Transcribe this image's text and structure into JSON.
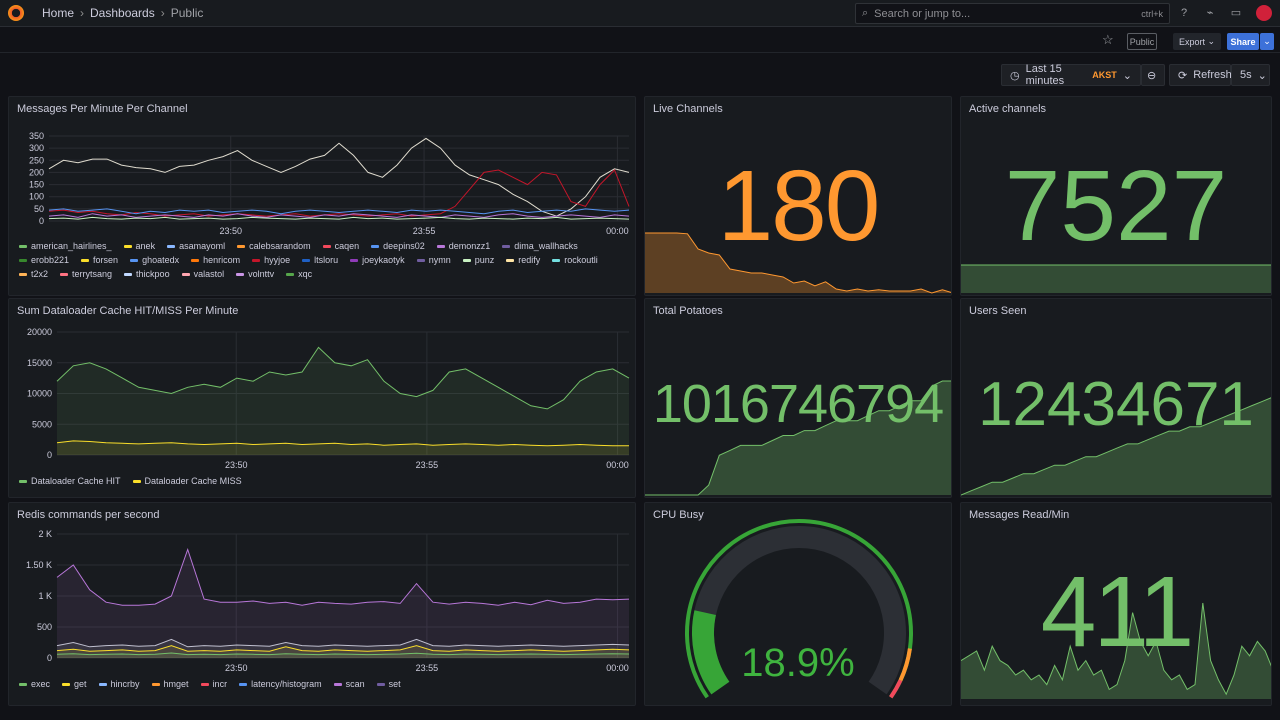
{
  "nav": {
    "breadcrumbs": [
      "Home",
      "Dashboards",
      "Public"
    ],
    "search_placeholder": "Search or jump to...",
    "shortcut": "ctrl+k"
  },
  "toolbar": {
    "public_badge": "Public",
    "export": "Export",
    "share": "Share",
    "time_range": "Last 15 minutes",
    "timezone": "AKST",
    "refresh": "Refresh",
    "refresh_interval": "5s"
  },
  "colors": {
    "green": "#73bf69",
    "orange": "#ff9830",
    "accent": "#3d71d9"
  },
  "panels": {
    "messages": {
      "title": "Messages Per Minute Per Channel"
    },
    "cache": {
      "title": "Sum Dataloader Cache HIT/MISS Per Minute"
    },
    "redis": {
      "title": "Redis commands per second"
    },
    "live": {
      "title": "Live Channels",
      "value": "180",
      "spark": [
        150,
        150,
        150,
        150,
        148,
        110,
        100,
        95,
        60,
        55,
        50,
        50,
        45,
        40,
        25,
        30,
        18,
        28,
        10,
        5,
        10,
        5,
        8,
        5,
        5,
        5,
        10,
        0,
        8,
        0
      ]
    },
    "active": {
      "title": "Active channels",
      "value": "7527",
      "spark": [
        7527,
        7527
      ]
    },
    "potatoes": {
      "title": "Total Potatoes",
      "value": "1016746794",
      "spark": [
        0,
        0,
        0,
        0,
        0,
        0,
        2,
        8,
        9,
        10,
        10,
        10,
        11,
        12,
        12,
        13,
        13,
        14,
        15,
        15,
        15,
        16,
        17,
        17,
        18,
        19,
        19,
        22,
        23,
        23
      ]
    },
    "users": {
      "title": "Users Seen",
      "value": "12434671",
      "spark": [
        0,
        1,
        2,
        3,
        3,
        4,
        5,
        5,
        6,
        7,
        7,
        8,
        9,
        9,
        10,
        11,
        12,
        12,
        13,
        14,
        15,
        15,
        16,
        16,
        17,
        18,
        19,
        20,
        21,
        22,
        23
      ]
    },
    "cpu": {
      "title": "CPU Busy",
      "value": "18.9%",
      "percent": 18.9
    },
    "msgread": {
      "title": "Messages Read/Min",
      "value": "411",
      "spark": [
        40,
        45,
        50,
        30,
        55,
        40,
        35,
        25,
        30,
        20,
        25,
        15,
        35,
        20,
        55,
        30,
        40,
        25,
        30,
        10,
        15,
        40,
        90,
        60,
        45,
        60,
        30,
        20,
        25,
        10,
        15,
        100,
        40,
        20,
        5,
        25,
        55,
        45,
        60,
        50,
        30
      ]
    }
  },
  "chart_data": [
    {
      "id": "messages",
      "type": "line",
      "xlabel": "",
      "ylabel": "",
      "xlim": [
        0.3,
        15.3
      ],
      "ylim": [
        0,
        350
      ],
      "yticks": [
        0,
        50,
        100,
        150,
        200,
        250,
        300,
        350
      ],
      "xticks": [
        {
          "v": 5,
          "label": "23:50"
        },
        {
          "v": 10,
          "label": "23:55"
        },
        {
          "v": 15,
          "label": "00:00"
        }
      ],
      "legend": [
        "american_hairlines_",
        "anek",
        "asamayoml",
        "calebsarandom",
        "caqen",
        "deepins02",
        "demonzz1",
        "dima_wallhacks",
        "erobb221",
        "forsen",
        "ghoatedx",
        "henricom",
        "hyyjoe",
        "ltsloru",
        "joeykaotyk",
        "nymn",
        "punz",
        "redify",
        "rockoutli",
        "t2x2",
        "terrytsang",
        "thickpoo",
        "valastol",
        "volnttv",
        "xqc"
      ],
      "legend_colors": [
        "#73bf69",
        "#fade2a",
        "#8ab8ff",
        "#ff9830",
        "#f2495c",
        "#5794f2",
        "#b877d9",
        "#705da0",
        "#37872d",
        "#fade2a",
        "#5794f2",
        "#ff780a",
        "#c4162a",
        "#1f60c4",
        "#8f3bb8",
        "#705da0",
        "#c8f2c2",
        "#ffe5a5",
        "#73dfe0",
        "#ffb357",
        "#ff7383",
        "#c0d8ff",
        "#ffa6b0",
        "#ca95e5",
        "#56a64b"
      ],
      "series": [
        {
          "name": "forsen",
          "color": "#e0dccf",
          "values": [
            215,
            250,
            240,
            255,
            255,
            230,
            220,
            215,
            200,
            225,
            230,
            250,
            265,
            290,
            250,
            225,
            200,
            225,
            255,
            270,
            320,
            270,
            200,
            180,
            230,
            300,
            340,
            300,
            230,
            190,
            170,
            150,
            110,
            80,
            40,
            20,
            50,
            100,
            180,
            215,
            200
          ]
        },
        {
          "name": "caqen",
          "color": "#c4162a",
          "values": [
            40,
            45,
            35,
            40,
            30,
            25,
            35,
            30,
            20,
            25,
            30,
            20,
            25,
            30,
            25,
            20,
            25,
            30,
            20,
            25,
            30,
            25,
            20,
            25,
            30,
            20,
            25,
            30,
            60,
            130,
            200,
            210,
            180,
            150,
            200,
            190,
            80,
            60,
            150,
            210,
            60
          ]
        },
        {
          "name": "deepins02",
          "color": "#5794f2",
          "values": [
            45,
            50,
            40,
            45,
            50,
            40,
            30,
            40,
            35,
            45,
            40,
            45,
            35,
            40,
            45,
            40,
            30,
            40,
            45,
            40,
            35,
            40,
            45,
            40,
            35,
            45,
            40,
            45,
            40,
            35,
            30,
            40,
            45,
            35,
            40,
            45,
            40,
            50,
            45,
            40,
            45
          ]
        },
        {
          "name": "demonzz1",
          "color": "#b877d9",
          "values": [
            20,
            25,
            15,
            30,
            20,
            25,
            15,
            20,
            25,
            20,
            15,
            25,
            20,
            30,
            20,
            15,
            25,
            20,
            15,
            25,
            20,
            30,
            25,
            20,
            15,
            25,
            20,
            15,
            25,
            20,
            15,
            25,
            30,
            20,
            15,
            20,
            25,
            20,
            15,
            25,
            20
          ]
        },
        {
          "name": "punz",
          "color": "#c8f2c2",
          "values": [
            10,
            12,
            8,
            15,
            10,
            8,
            12,
            10,
            15,
            8,
            10,
            12,
            8,
            10,
            15,
            12,
            10,
            8,
            12,
            10,
            8,
            15,
            10,
            12,
            8,
            10,
            12,
            15,
            10,
            8,
            12,
            10,
            8,
            12,
            10,
            15,
            8,
            10,
            12,
            10,
            8
          ]
        }
      ]
    },
    {
      "id": "cache",
      "type": "area",
      "xlim": [
        0.3,
        15.3
      ],
      "ylim": [
        0,
        20000
      ],
      "yticks": [
        0,
        5000,
        10000,
        15000,
        20000
      ],
      "xticks": [
        {
          "v": 5,
          "label": "23:50"
        },
        {
          "v": 10,
          "label": "23:55"
        },
        {
          "v": 15,
          "label": "00:00"
        }
      ],
      "legend": [
        "Dataloader Cache HIT",
        "Dataloader Cache MISS"
      ],
      "legend_colors": [
        "#73bf69",
        "#fade2a"
      ],
      "series": [
        {
          "name": "Dataloader Cache HIT",
          "color": "#73bf69",
          "values": [
            12000,
            14500,
            15000,
            14000,
            12500,
            11000,
            10500,
            10000,
            11000,
            11500,
            11000,
            12500,
            12000,
            13500,
            13000,
            13500,
            17500,
            15000,
            14500,
            15500,
            12000,
            10000,
            9500,
            10500,
            13500,
            14000,
            12500,
            11000,
            9500,
            8000,
            7500,
            9000,
            12000,
            13500,
            14000,
            12500
          ]
        },
        {
          "name": "Dataloader Cache MISS",
          "color": "#fade2a",
          "values": [
            2000,
            2300,
            2200,
            2000,
            1900,
            1800,
            1900,
            2000,
            1800,
            1700,
            1800,
            1900,
            1700,
            1800,
            1900,
            1700,
            1800,
            1900,
            1700,
            1800,
            1600,
            1700,
            1800,
            1600,
            1700,
            1800,
            1700,
            1600,
            1700,
            1600,
            1500,
            1600,
            1700,
            1600,
            1500,
            1500
          ]
        }
      ]
    },
    {
      "id": "redis",
      "type": "area",
      "xlim": [
        0.3,
        15.3
      ],
      "ylim": [
        0,
        2000
      ],
      "yticks": [
        {
          "v": 0,
          "label": "0"
        },
        {
          "v": 500,
          "label": "500"
        },
        {
          "v": 1000,
          "label": "1 K"
        },
        {
          "v": 1500,
          "label": "1.50 K"
        },
        {
          "v": 2000,
          "label": "2 K"
        }
      ],
      "xticks": [
        {
          "v": 5,
          "label": "23:50"
        },
        {
          "v": 10,
          "label": "23:55"
        },
        {
          "v": 15,
          "label": "00:00"
        }
      ],
      "legend": [
        "exec",
        "get",
        "hincrby",
        "hmget",
        "incr",
        "latency/histogram",
        "scan",
        "set"
      ],
      "legend_colors": [
        "#73bf69",
        "#fade2a",
        "#8ab8ff",
        "#ff9830",
        "#f2495c",
        "#5794f2",
        "#b877d9",
        "#705da0"
      ],
      "series": [
        {
          "name": "set",
          "color": "#b877d9",
          "values": [
            1300,
            1500,
            1100,
            900,
            850,
            850,
            870,
            1000,
            1750,
            950,
            900,
            900,
            920,
            880,
            900,
            850,
            900,
            880,
            870,
            900,
            910,
            880,
            1200,
            900,
            870,
            900,
            880,
            850,
            900,
            860,
            930,
            880,
            900,
            950,
            940,
            950
          ]
        },
        {
          "name": "scan",
          "color": "#c0c0d0",
          "values": [
            200,
            250,
            180,
            200,
            210,
            190,
            200,
            300,
            180,
            200,
            190,
            210,
            200,
            190,
            250,
            200,
            190,
            210,
            200,
            190,
            200,
            210,
            300,
            200,
            190,
            210,
            200,
            190,
            200,
            210,
            200,
            190,
            200,
            210,
            220,
            210
          ]
        },
        {
          "name": "get",
          "color": "#fade2a",
          "values": [
            120,
            140,
            110,
            120,
            130,
            110,
            120,
            200,
            110,
            120,
            110,
            130,
            120,
            110,
            180,
            120,
            110,
            130,
            120,
            110,
            120,
            130,
            200,
            120,
            110,
            130,
            120,
            110,
            120,
            130,
            120,
            110,
            120,
            130,
            140,
            130
          ]
        },
        {
          "name": "exec",
          "color": "#73bf69",
          "values": [
            60,
            70,
            55,
            60,
            65,
            55,
            60,
            80,
            55,
            60,
            55,
            65,
            60,
            55,
            70,
            60,
            55,
            65,
            60,
            55,
            60,
            65,
            75,
            60,
            55,
            65,
            60,
            55,
            60,
            65,
            60,
            55,
            60,
            65,
            70,
            65
          ]
        }
      ]
    }
  ]
}
